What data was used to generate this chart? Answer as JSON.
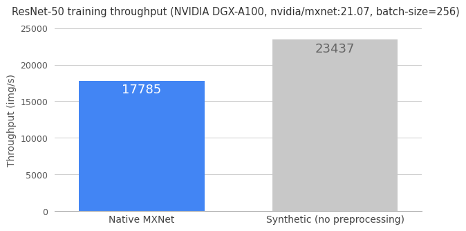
{
  "title": "ResNet-50 training throughput (NVIDIA DGX-A100, nvidia/mxnet:21.07, batch-size=256)",
  "categories": [
    "Native MXNet",
    "Synthetic (no preprocessing)"
  ],
  "values": [
    17785,
    23437
  ],
  "bar_colors": [
    "#4285F4",
    "#C8C8C8"
  ],
  "annotation_colors": [
    "white",
    "#666666"
  ],
  "ylabel": "Throughput (img/s)",
  "ylim": [
    0,
    25000
  ],
  "yticks": [
    0,
    5000,
    10000,
    15000,
    20000,
    25000
  ],
  "title_fontsize": 10.5,
  "label_fontsize": 10,
  "annotation_fontsize": 13,
  "tick_fontsize": 9,
  "background_color": "#ffffff",
  "grid_color": "#cccccc",
  "bar_width": 0.65,
  "x_positions": [
    0,
    1
  ],
  "xlim": [
    -0.45,
    1.45
  ]
}
